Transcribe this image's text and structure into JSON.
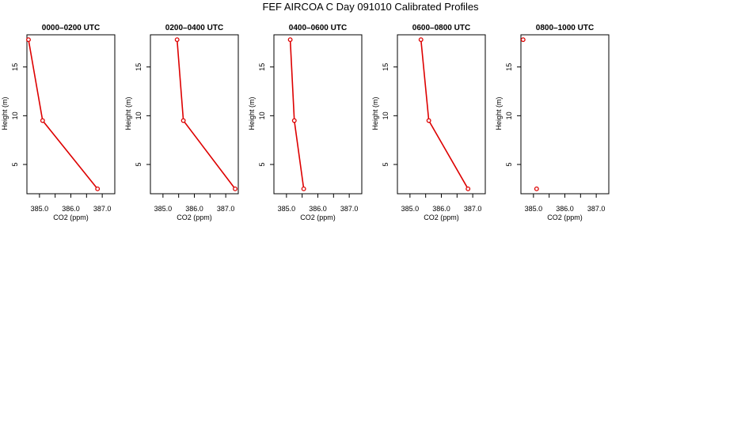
{
  "figure": {
    "title": "FEF AIRCOA C  Day 091010  Calibrated Profiles"
  },
  "chart_data": [
    {
      "type": "line",
      "title": "0000–0200 UTC",
      "xlabel": "CO2 (ppm)",
      "ylabel": "Height (m)",
      "xlim": [
        384.6,
        387.4
      ],
      "ylim": [
        2.0,
        18.3
      ],
      "xticks": [
        "385.0",
        "386.0",
        "387.0"
      ],
      "yticks": [
        "5",
        "10",
        "15"
      ],
      "series": [
        {
          "color": "#dd0000",
          "connected": true,
          "points": [
            {
              "x": 384.65,
              "y": 17.8
            },
            {
              "x": 385.1,
              "y": 9.5
            },
            {
              "x": 386.85,
              "y": 2.5
            }
          ]
        }
      ]
    },
    {
      "type": "line",
      "title": "0200–0400 UTC",
      "xlabel": "CO2 (ppm)",
      "ylabel": "Height (m)",
      "xlim": [
        384.6,
        387.4
      ],
      "ylim": [
        2.0,
        18.3
      ],
      "xticks": [
        "385.0",
        "386.0",
        "387.0"
      ],
      "yticks": [
        "5",
        "10",
        "15"
      ],
      "series": [
        {
          "color": "#dd0000",
          "connected": true,
          "points": [
            {
              "x": 385.45,
              "y": 17.8
            },
            {
              "x": 385.65,
              "y": 9.5
            },
            {
              "x": 387.3,
              "y": 2.5
            }
          ]
        }
      ]
    },
    {
      "type": "line",
      "title": "0400–0600 UTC",
      "xlabel": "CO2 (ppm)",
      "ylabel": "Height (m)",
      "xlim": [
        384.6,
        387.4
      ],
      "ylim": [
        2.0,
        18.3
      ],
      "xticks": [
        "385.0",
        "386.0",
        "387.0"
      ],
      "yticks": [
        "5",
        "10",
        "15"
      ],
      "series": [
        {
          "color": "#dd0000",
          "connected": true,
          "points": [
            {
              "x": 385.12,
              "y": 17.8
            },
            {
              "x": 385.25,
              "y": 9.5
            },
            {
              "x": 385.55,
              "y": 2.5
            }
          ]
        }
      ]
    },
    {
      "type": "line",
      "title": "0600–0800 UTC",
      "xlabel": "CO2 (ppm)",
      "ylabel": "Height (m)",
      "xlim": [
        384.6,
        387.4
      ],
      "ylim": [
        2.0,
        18.3
      ],
      "xticks": [
        "385.0",
        "386.0",
        "387.0"
      ],
      "yticks": [
        "5",
        "10",
        "15"
      ],
      "series": [
        {
          "color": "#dd0000",
          "connected": true,
          "points": [
            {
              "x": 385.35,
              "y": 17.8
            },
            {
              "x": 385.6,
              "y": 9.5
            },
            {
              "x": 386.85,
              "y": 2.5
            }
          ]
        }
      ]
    },
    {
      "type": "scatter",
      "title": "0800–1000 UTC",
      "xlabel": "CO2 (ppm)",
      "ylabel": "Height (m)",
      "xlim": [
        384.6,
        387.4
      ],
      "ylim": [
        2.0,
        18.3
      ],
      "xticks": [
        "385.0",
        "386.0",
        "387.0"
      ],
      "yticks": [
        "5",
        "10",
        "15"
      ],
      "series": [
        {
          "color": "#dd0000",
          "connected": false,
          "points": [
            {
              "x": 384.67,
              "y": 17.8
            },
            {
              "x": 385.1,
              "y": 2.5
            }
          ]
        }
      ]
    }
  ]
}
